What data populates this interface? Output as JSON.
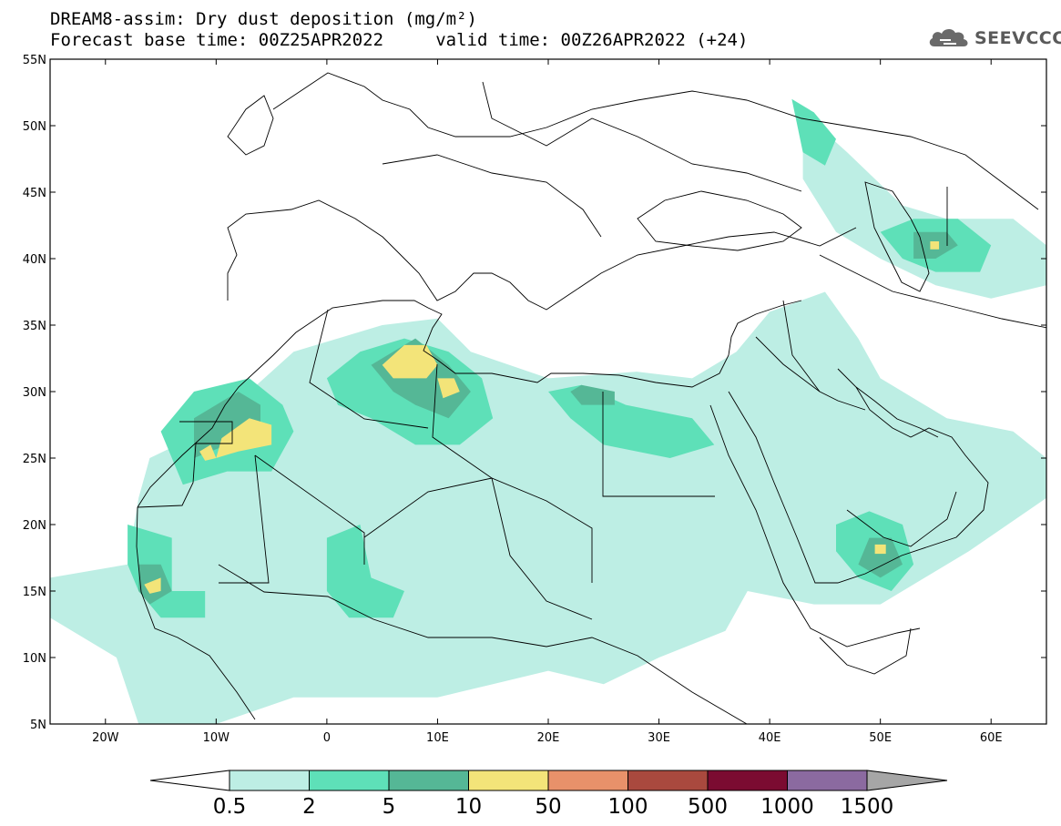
{
  "title": {
    "line1": "DREAM8-assim: Dry dust deposition (mg/m²)",
    "line2": "Forecast base time: 00Z25APR2022     valid time: 00Z26APR2022 (+24)"
  },
  "logo": {
    "text": "SEEVCCC",
    "icon": "cloud-logo-icon"
  },
  "map": {
    "projection": "lat-lon",
    "lon_range": [
      -25,
      65
    ],
    "lat_range": [
      5,
      55
    ],
    "lat_ticks": [
      {
        "value": 55,
        "label": "55N"
      },
      {
        "value": 50,
        "label": "50N"
      },
      {
        "value": 45,
        "label": "45N"
      },
      {
        "value": 40,
        "label": "40N"
      },
      {
        "value": 35,
        "label": "35N"
      },
      {
        "value": 30,
        "label": "30N"
      },
      {
        "value": 25,
        "label": "25N"
      },
      {
        "value": 20,
        "label": "20N"
      },
      {
        "value": 15,
        "label": "15N"
      },
      {
        "value": 10,
        "label": "10N"
      },
      {
        "value": 5,
        "label": "5N"
      }
    ],
    "lon_ticks": [
      {
        "value": -20,
        "label": "20W"
      },
      {
        "value": -10,
        "label": "10W"
      },
      {
        "value": 0,
        "label": "0"
      },
      {
        "value": 10,
        "label": "10E"
      },
      {
        "value": 20,
        "label": "20E"
      },
      {
        "value": 30,
        "label": "30E"
      },
      {
        "value": 40,
        "label": "40E"
      },
      {
        "value": 50,
        "label": "50E"
      },
      {
        "value": 60,
        "label": "60E"
      }
    ],
    "dust_regions": [
      {
        "level": 0,
        "points": [
          [
            -11,
            27
          ],
          [
            -3,
            33
          ],
          [
            5,
            35
          ],
          [
            10,
            35.5
          ],
          [
            13,
            33
          ],
          [
            20,
            31
          ],
          [
            28,
            31.5
          ],
          [
            33,
            31
          ],
          [
            37,
            33
          ],
          [
            40,
            36
          ],
          [
            45,
            37.5
          ],
          [
            48,
            34
          ],
          [
            50,
            31
          ],
          [
            56,
            28
          ],
          [
            62,
            27
          ],
          [
            65,
            25
          ],
          [
            65,
            22
          ],
          [
            58,
            18
          ],
          [
            50,
            14
          ],
          [
            44,
            14
          ],
          [
            38,
            15
          ],
          [
            36,
            12
          ],
          [
            30,
            10
          ],
          [
            25,
            8
          ],
          [
            20,
            9
          ],
          [
            15,
            8
          ],
          [
            10,
            7
          ],
          [
            5,
            7
          ],
          [
            -3,
            7
          ],
          [
            -10,
            5
          ],
          [
            -17,
            5
          ],
          [
            -19,
            10
          ],
          [
            -25,
            13
          ],
          [
            -25,
            16
          ],
          [
            -18,
            17
          ],
          [
            -17,
            22
          ],
          [
            -16,
            25
          ]
        ]
      },
      {
        "level": 0,
        "points": [
          [
            43,
            51
          ],
          [
            47,
            48
          ],
          [
            52,
            44
          ],
          [
            56,
            43
          ],
          [
            62,
            43
          ],
          [
            65,
            41
          ],
          [
            65,
            38
          ],
          [
            60,
            37
          ],
          [
            55,
            38
          ],
          [
            50,
            40
          ],
          [
            46,
            42
          ],
          [
            43,
            46
          ]
        ]
      },
      {
        "level": 1,
        "points": [
          [
            -15,
            27
          ],
          [
            -12,
            30
          ],
          [
            -7,
            31
          ],
          [
            -4,
            29
          ],
          [
            -3,
            27
          ],
          [
            -5,
            24
          ],
          [
            -9,
            24
          ],
          [
            -13,
            23
          ]
        ]
      },
      {
        "level": 1,
        "points": [
          [
            0,
            31
          ],
          [
            3,
            33
          ],
          [
            7,
            34
          ],
          [
            11,
            33
          ],
          [
            14,
            31
          ],
          [
            15,
            28
          ],
          [
            12,
            26
          ],
          [
            8,
            26
          ],
          [
            4,
            28
          ],
          [
            1,
            29
          ]
        ]
      },
      {
        "level": 1,
        "points": [
          [
            -18,
            20
          ],
          [
            -14,
            19
          ],
          [
            -14,
            15
          ],
          [
            -11,
            15
          ],
          [
            -11,
            13
          ],
          [
            -15,
            13
          ],
          [
            -17,
            15
          ],
          [
            -18,
            17
          ]
        ]
      },
      {
        "level": 1,
        "points": [
          [
            0,
            19
          ],
          [
            3,
            20
          ],
          [
            4,
            16
          ],
          [
            7,
            15
          ],
          [
            6,
            13
          ],
          [
            2,
            13
          ],
          [
            0,
            15
          ]
        ]
      },
      {
        "level": 1,
        "points": [
          [
            20,
            30
          ],
          [
            23,
            30.5
          ],
          [
            27,
            29
          ],
          [
            33,
            28
          ],
          [
            35,
            26
          ],
          [
            31,
            25
          ],
          [
            25,
            26
          ],
          [
            22,
            28
          ]
        ]
      },
      {
        "level": 1,
        "points": [
          [
            46,
            20
          ],
          [
            49,
            21
          ],
          [
            52,
            20
          ],
          [
            53,
            17
          ],
          [
            51,
            15
          ],
          [
            48,
            16
          ],
          [
            46,
            18
          ]
        ]
      },
      {
        "level": 1,
        "points": [
          [
            50,
            42
          ],
          [
            53,
            43
          ],
          [
            57,
            43
          ],
          [
            60,
            41
          ],
          [
            59,
            39
          ],
          [
            55,
            39
          ],
          [
            52,
            40
          ]
        ]
      },
      {
        "level": 1,
        "points": [
          [
            42,
            52
          ],
          [
            44,
            51
          ],
          [
            46,
            49
          ],
          [
            45,
            47
          ],
          [
            43,
            48
          ]
        ]
      },
      {
        "level": 2,
        "points": [
          [
            -12,
            28
          ],
          [
            -8,
            30
          ],
          [
            -6,
            29
          ],
          [
            -6,
            27
          ],
          [
            -9,
            26
          ],
          [
            -12,
            25
          ]
        ]
      },
      {
        "level": 2,
        "points": [
          [
            4,
            32
          ],
          [
            8,
            34
          ],
          [
            11,
            32
          ],
          [
            13,
            30
          ],
          [
            11,
            28
          ],
          [
            8,
            29
          ],
          [
            6,
            30
          ]
        ]
      },
      {
        "level": 2,
        "points": [
          [
            -17,
            17
          ],
          [
            -15,
            17
          ],
          [
            -14,
            15
          ],
          [
            -16,
            14
          ],
          [
            -17,
            15
          ]
        ]
      },
      {
        "level": 2,
        "points": [
          [
            49,
            19
          ],
          [
            51,
            19
          ],
          [
            52,
            17
          ],
          [
            50,
            16
          ],
          [
            48,
            17
          ]
        ]
      },
      {
        "level": 2,
        "points": [
          [
            53,
            42
          ],
          [
            56,
            42
          ],
          [
            57,
            41
          ],
          [
            55,
            40
          ],
          [
            53,
            40
          ]
        ]
      },
      {
        "level": 2,
        "points": [
          [
            23,
            30.5
          ],
          [
            26,
            30
          ],
          [
            26,
            29
          ],
          [
            23,
            29
          ],
          [
            22,
            30
          ]
        ]
      },
      {
        "level": 3,
        "points": [
          [
            -9.5,
            26.5
          ],
          [
            -7,
            28
          ],
          [
            -5,
            27.5
          ],
          [
            -5,
            26
          ],
          [
            -8,
            25.5
          ],
          [
            -10,
            25
          ]
        ]
      },
      {
        "level": 3,
        "points": [
          [
            -11.5,
            25.5
          ],
          [
            -10.5,
            26
          ],
          [
            -10,
            25
          ],
          [
            -11,
            24.8
          ]
        ]
      },
      {
        "level": 3,
        "points": [
          [
            5,
            32
          ],
          [
            7,
            33.5
          ],
          [
            9,
            33.5
          ],
          [
            10,
            32
          ],
          [
            9,
            31
          ],
          [
            6,
            31
          ]
        ]
      },
      {
        "level": 3,
        "points": [
          [
            10,
            31
          ],
          [
            11.5,
            31
          ],
          [
            12,
            30
          ],
          [
            10.5,
            29.5
          ]
        ]
      },
      {
        "level": 3,
        "points": [
          [
            -16.5,
            15.5
          ],
          [
            -15,
            16
          ],
          [
            -15,
            15
          ],
          [
            -16,
            14.8
          ]
        ]
      },
      {
        "level": 3,
        "points": [
          [
            49.5,
            18.5
          ],
          [
            50.5,
            18.5
          ],
          [
            50.5,
            17.8
          ],
          [
            49.5,
            17.8
          ]
        ]
      },
      {
        "level": 3,
        "points": [
          [
            54.5,
            41.3
          ],
          [
            55.3,
            41.3
          ],
          [
            55.3,
            40.7
          ],
          [
            54.5,
            40.7
          ]
        ]
      }
    ],
    "colors": {
      "background": "#ffffff",
      "coastline": "#000000",
      "grid_frame": "#000000"
    }
  },
  "colorbar": {
    "levels": [
      {
        "label": "0.5",
        "color": "#bdeee4"
      },
      {
        "label": "2",
        "color": "#5ee0b8"
      },
      {
        "label": "5",
        "color": "#55b796"
      },
      {
        "label": "10",
        "color": "#f3e479"
      },
      {
        "label": "50",
        "color": "#e8916a"
      },
      {
        "label": "100",
        "color": "#a9493e"
      },
      {
        "label": "500",
        "color": "#7b0b31"
      },
      {
        "label": "1000",
        "color": "#8b6aa0"
      },
      {
        "label": "1500",
        "color": "#a6a6a6"
      }
    ],
    "under_color": "#ffffff",
    "over_color": "#a6a6a6"
  }
}
